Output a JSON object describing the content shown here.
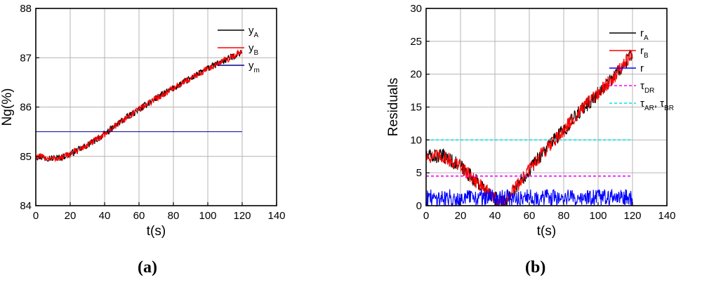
{
  "figure": {
    "captions": [
      "(a)",
      "(b)"
    ]
  },
  "chart_data": [
    {
      "type": "line",
      "panel_label": "a",
      "xlabel": "t(s)",
      "ylabel": "Ng(%)",
      "xlim": [
        0,
        140
      ],
      "ylim": [
        84,
        88
      ],
      "xticks": [
        0,
        20,
        40,
        60,
        80,
        100,
        120,
        140
      ],
      "yticks": [
        84,
        85,
        86,
        87,
        88
      ],
      "grid": true,
      "legend_position": "top-right",
      "series": [
        {
          "name": "yA",
          "legend_main": "y",
          "legend_sub": "A",
          "color": "#000000",
          "noise": 0.07,
          "x": [
            0,
            10,
            15,
            20,
            30,
            40,
            50,
            60,
            70,
            80,
            90,
            100,
            110,
            120
          ],
          "y": [
            85.0,
            84.96,
            84.98,
            85.05,
            85.22,
            85.45,
            85.72,
            85.95,
            86.18,
            86.38,
            86.58,
            86.78,
            86.95,
            87.12
          ]
        },
        {
          "name": "yB",
          "legend_main": "y",
          "legend_sub": "B",
          "color": "#ff0000",
          "noise": 0.07,
          "x": [
            0,
            10,
            15,
            20,
            30,
            40,
            50,
            60,
            70,
            80,
            90,
            100,
            110,
            120
          ],
          "y": [
            85.0,
            84.95,
            84.97,
            85.05,
            85.22,
            85.45,
            85.72,
            85.95,
            86.18,
            86.38,
            86.58,
            86.78,
            86.95,
            87.12
          ]
        },
        {
          "name": "ym",
          "legend_main": "y",
          "legend_sub": "m",
          "color": "#00008b",
          "noise": 0,
          "x": [
            0,
            120
          ],
          "y": [
            85.5,
            85.5
          ]
        }
      ]
    },
    {
      "type": "line",
      "panel_label": "b",
      "xlabel": "t(s)",
      "ylabel": "Residuals",
      "xlim": [
        0,
        140
      ],
      "ylim": [
        0,
        30
      ],
      "xticks": [
        0,
        20,
        40,
        60,
        80,
        100,
        120,
        140
      ],
      "yticks": [
        0,
        5,
        10,
        15,
        20,
        25,
        30
      ],
      "grid": true,
      "legend_position": "top-right",
      "series": [
        {
          "name": "rA",
          "legend_main": "r",
          "legend_sub": "A",
          "color": "#000000",
          "noise": 1.1,
          "x": [
            0,
            10,
            20,
            30,
            40,
            45,
            50,
            60,
            70,
            80,
            90,
            100,
            110,
            120
          ],
          "y": [
            7.5,
            7.5,
            6.0,
            3.5,
            1.0,
            0.5,
            2.0,
            5.5,
            8.8,
            11.5,
            14.5,
            17.0,
            20.0,
            23.0
          ]
        },
        {
          "name": "rB",
          "legend_main": "r",
          "legend_sub": "B",
          "color": "#ff0000",
          "noise": 1.1,
          "x": [
            0,
            10,
            20,
            30,
            40,
            45,
            50,
            60,
            70,
            80,
            90,
            100,
            110,
            120
          ],
          "y": [
            7.5,
            7.5,
            6.0,
            3.5,
            1.0,
            0.5,
            2.0,
            5.5,
            8.8,
            11.5,
            14.5,
            17.0,
            20.0,
            23.0
          ]
        },
        {
          "name": "r",
          "legend_main": "r",
          "legend_sub": "",
          "color": "#0000ff",
          "noise": 1.3,
          "x": [
            0,
            120
          ],
          "y": [
            1.2,
            1.2
          ]
        },
        {
          "name": "τDR",
          "legend_main": "τ",
          "legend_sub": "DR",
          "color": "#ff00ff",
          "dash": true,
          "noise": 0,
          "x": [
            0,
            120
          ],
          "y": [
            4.5,
            4.5
          ]
        },
        {
          "name": "τAR, τBR",
          "legend_main": "τ",
          "legend_sub": "AR",
          "legend_extra": ", τ",
          "legend_sub2": "BR",
          "color": "#00e5e5",
          "dash": true,
          "noise": 0,
          "x": [
            0,
            120
          ],
          "y": [
            10,
            10
          ]
        }
      ]
    }
  ]
}
